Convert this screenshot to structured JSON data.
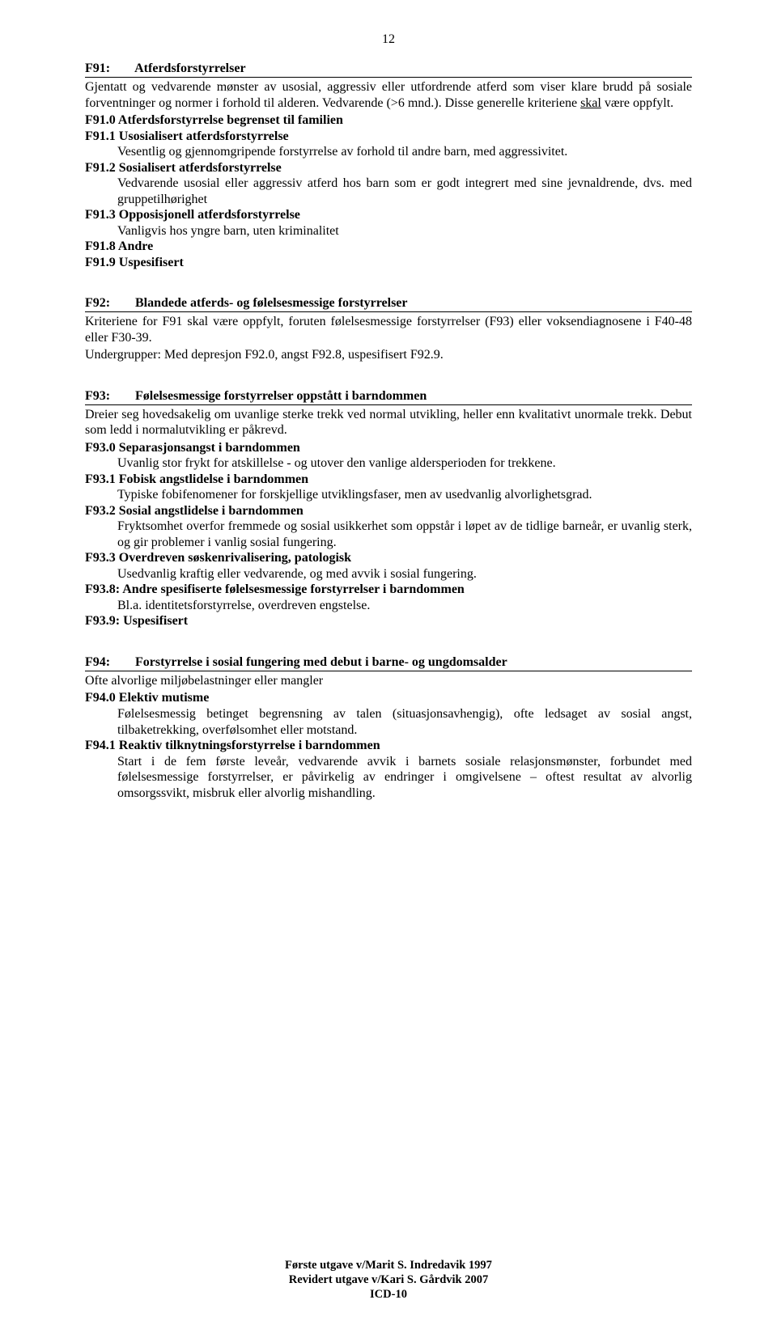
{
  "page_number": "12",
  "sections": {
    "f91": {
      "code": "F91:",
      "title": "Atferdsforstyrrelser",
      "intro_html": "Gjentatt og vedvarende mønster av usosial, aggressiv eller utfordrende atferd som viser klare brudd på sosiale forventninger og normer i forhold til alderen. Vedvarende (>6 mnd.). Disse generelle kriteriene <u>skal</u> være oppfylt.",
      "items": [
        {
          "code": "F91.0",
          "label": "Atferdsforstyrrelse begrenset til familien",
          "desc": ""
        },
        {
          "code": "F91.1",
          "label": "Usosialisert atferdsforstyrrelse",
          "desc": "Vesentlig og gjennomgripende forstyrrelse av forhold til andre barn, med aggressivitet."
        },
        {
          "code": "F91.2",
          "label": "Sosialisert atferdsforstyrrelse",
          "desc": "Vedvarende usosial eller aggressiv atferd hos barn som er godt integrert med sine jevnaldrende, dvs. med gruppetilhørighet"
        },
        {
          "code": "F91.3",
          "label": "Opposisjonell atferdsforstyrrelse",
          "desc": "Vanligvis hos yngre barn, uten kriminalitet"
        },
        {
          "code": "F91.8",
          "label": "Andre",
          "desc": ""
        },
        {
          "code": "F91.9",
          "label": "Uspesifisert",
          "desc": ""
        }
      ]
    },
    "f92": {
      "code": "F92:",
      "title": "Blandede atferds- og følelsesmessige forstyrrelser",
      "intro": "Kriteriene for F91 skal være oppfylt, foruten følelsesmessige forstyrrelser (F93) eller voksendiagnosene i F40-48 eller F30-39.",
      "intro2": "Undergrupper: Med depresjon F92.0, angst F92.8, uspesifisert F92.9."
    },
    "f93": {
      "code": "F93:",
      "title": "Følelsesmessige forstyrrelser oppstått i barndommen",
      "intro": "Dreier seg hovedsakelig om uvanlige sterke trekk ved normal utvikling, heller enn kvalitativt unormale trekk. Debut som ledd i normalutvikling er påkrevd.",
      "items": [
        {
          "code": "F93.0",
          "label": "Separasjonsangst i barndommen",
          "desc": "Uvanlig stor frykt for atskillelse - og utover den vanlige aldersperioden for trekkene."
        },
        {
          "code": "F93.1",
          "label": "Fobisk angstlidelse i barndommen",
          "desc": "Typiske fobifenomener for forskjellige utviklingsfaser, men av usedvanlig alvorlighetsgrad."
        },
        {
          "code": "F93.2",
          "label": "Sosial angstlidelse i barndommen",
          "desc": "Fryktsomhet overfor fremmede og sosial usikkerhet som oppstår i løpet av de tidlige barneår, er uvanlig sterk, og gir problemer i vanlig sosial fungering."
        },
        {
          "code": "F93.3",
          "label": "Overdreven søskenrivalisering, patologisk",
          "desc": "Usedvanlig kraftig eller vedvarende, og med avvik i sosial fungering."
        },
        {
          "code": "F93.8:",
          "label": "Andre spesifiserte følelsesmessige forstyrrelser i barndommen",
          "desc": "Bl.a. identitetsforstyrrelse, overdreven engstelse."
        },
        {
          "code": "F93.9:",
          "label": "Uspesifisert",
          "desc": ""
        }
      ]
    },
    "f94": {
      "code": "F94:",
      "title": "Forstyrrelse i sosial fungering med debut i barne- og ungdomsalder",
      "intro": "Ofte alvorlige miljøbelastninger eller mangler",
      "items": [
        {
          "code": "F94.0",
          "label": "Elektiv mutisme",
          "desc": "Følelsesmessig betinget begrensning av talen (situasjonsavhengig), ofte ledsaget av sosial angst, tilbaketrekking, overfølsomhet eller motstand."
        },
        {
          "code": "F94.1",
          "label": "Reaktiv tilknytningsforstyrrelse i barndommen",
          "desc": "Start i de fem første leveår, vedvarende avvik i barnets sosiale relasjonsmønster, forbundet med følelsesmessige forstyrrelser, er påvirkelig av endringer i omgivelsene – oftest resultat av alvorlig omsorgssvikt, misbruk eller alvorlig mishandling."
        }
      ]
    }
  },
  "footer": {
    "line1": "Første utgave v/Marit S. Indredavik 1997",
    "line2": "Revidert utgave v/Kari S. Gårdvik 2007",
    "line3": "ICD-10"
  }
}
